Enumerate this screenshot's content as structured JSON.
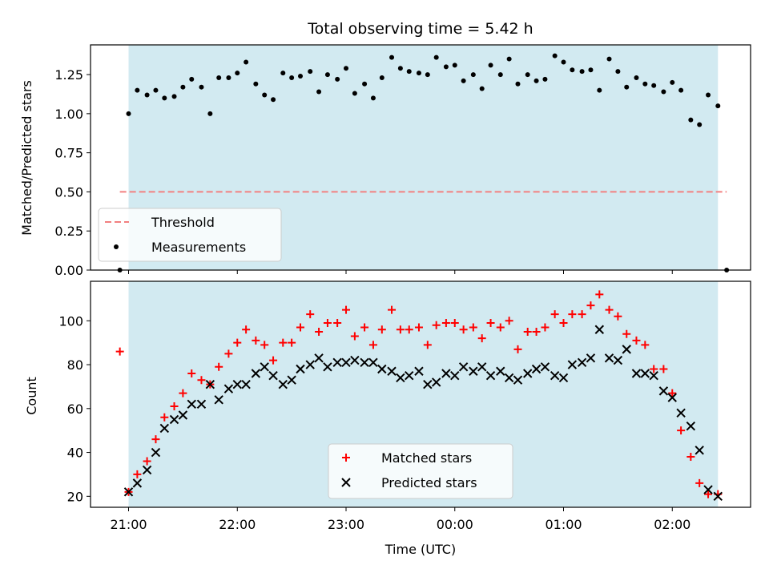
{
  "chart_data": [
    {
      "type": "scatter",
      "title": "Total observing time = 5.42 h",
      "ylabel": "Matched/Predicted stars",
      "xlabel": "",
      "ylim": [
        0,
        1.44
      ],
      "yticks": [
        0.0,
        0.25,
        0.5,
        0.75,
        1.0,
        1.25
      ],
      "ytick_labels": [
        "0.00",
        "0.25",
        "0.50",
        "0.75",
        "1.00",
        "1.25"
      ],
      "x_unit": "hours since 21:00 UTC",
      "xlim": [
        -0.35,
        5.72
      ],
      "shaded_span": [
        0.0,
        5.42
      ],
      "threshold": {
        "name": "Threshold",
        "value": 0.5,
        "x_range": [
          -0.08,
          5.5
        ]
      },
      "series": [
        {
          "name": "Measurements",
          "x": [
            -0.08,
            0.0,
            0.08,
            0.17,
            0.25,
            0.33,
            0.42,
            0.5,
            0.58,
            0.67,
            0.75,
            0.83,
            0.92,
            1.0,
            1.08,
            1.17,
            1.25,
            1.33,
            1.42,
            1.5,
            1.58,
            1.67,
            1.75,
            1.83,
            1.92,
            2.0,
            2.08,
            2.17,
            2.25,
            2.33,
            2.42,
            2.5,
            2.58,
            2.67,
            2.75,
            2.83,
            2.92,
            3.0,
            3.08,
            3.17,
            3.25,
            3.33,
            3.42,
            3.5,
            3.58,
            3.67,
            3.75,
            3.83,
            3.92,
            4.0,
            4.08,
            4.17,
            4.25,
            4.33,
            4.42,
            4.5,
            4.58,
            4.67,
            4.75,
            4.83,
            4.92,
            5.0,
            5.08,
            5.17,
            5.25,
            5.33,
            5.42,
            5.5
          ],
          "y": [
            0.0,
            1.0,
            1.15,
            1.12,
            1.15,
            1.1,
            1.11,
            1.17,
            1.22,
            1.17,
            1.0,
            1.23,
            1.23,
            1.26,
            1.33,
            1.19,
            1.12,
            1.09,
            1.26,
            1.23,
            1.24,
            1.27,
            1.14,
            1.25,
            1.22,
            1.29,
            1.13,
            1.19,
            1.1,
            1.23,
            1.36,
            1.29,
            1.27,
            1.26,
            1.25,
            1.36,
            1.3,
            1.31,
            1.21,
            1.25,
            1.16,
            1.31,
            1.25,
            1.35,
            1.19,
            1.25,
            1.21,
            1.22,
            1.37,
            1.33,
            1.28,
            1.27,
            1.28,
            1.15,
            1.35,
            1.27,
            1.17,
            1.23,
            1.19,
            1.18,
            1.14,
            1.2,
            1.15,
            0.96,
            0.93,
            1.12,
            1.05,
            0.0
          ]
        }
      ]
    },
    {
      "type": "scatter",
      "ylabel": "Count",
      "xlabel": "Time (UTC)",
      "ylim": [
        15,
        118
      ],
      "yticks": [
        20,
        40,
        60,
        80,
        100
      ],
      "ytick_labels": [
        "20",
        "40",
        "60",
        "80",
        "100"
      ],
      "x_unit": "hours since 21:00 UTC",
      "xlim": [
        -0.35,
        5.72
      ],
      "xticks": [
        0,
        1,
        2,
        3,
        4,
        5
      ],
      "xtick_labels": [
        "21:00",
        "22:00",
        "23:00",
        "00:00",
        "01:00",
        "02:00"
      ],
      "shaded_span": [
        0.0,
        5.42
      ],
      "series": [
        {
          "name": "Matched stars",
          "marker": "plus",
          "color": "#ff0000",
          "x": [
            -0.08,
            0.0,
            0.08,
            0.17,
            0.25,
            0.33,
            0.42,
            0.5,
            0.58,
            0.67,
            0.75,
            0.83,
            0.92,
            1.0,
            1.08,
            1.17,
            1.25,
            1.33,
            1.42,
            1.5,
            1.58,
            1.67,
            1.75,
            1.83,
            1.92,
            2.0,
            2.08,
            2.17,
            2.25,
            2.33,
            2.42,
            2.5,
            2.58,
            2.67,
            2.75,
            2.83,
            2.92,
            3.0,
            3.08,
            3.17,
            3.25,
            3.33,
            3.42,
            3.5,
            3.58,
            3.67,
            3.75,
            3.83,
            3.92,
            4.0,
            4.08,
            4.17,
            4.25,
            4.33,
            4.42,
            4.5,
            4.58,
            4.67,
            4.75,
            4.83,
            4.92,
            5.0,
            5.08,
            5.17,
            5.25,
            5.33,
            5.42
          ],
          "y": [
            86,
            22,
            30,
            36,
            46,
            56,
            61,
            67,
            76,
            73,
            71,
            79,
            85,
            90,
            96,
            91,
            89,
            82,
            90,
            90,
            97,
            103,
            95,
            99,
            99,
            105,
            93,
            97,
            89,
            96,
            105,
            96,
            96,
            97,
            89,
            98,
            99,
            99,
            96,
            97,
            92,
            99,
            97,
            100,
            87,
            95,
            95,
            97,
            103,
            99,
            103,
            103,
            107,
            112,
            105,
            102,
            94,
            91,
            89,
            78,
            78,
            67,
            50,
            38,
            26,
            21,
            21
          ]
        },
        {
          "name": "Predicted stars",
          "marker": "x",
          "color": "#000000",
          "x": [
            0.0,
            0.08,
            0.17,
            0.25,
            0.33,
            0.42,
            0.5,
            0.58,
            0.67,
            0.75,
            0.83,
            0.92,
            1.0,
            1.08,
            1.17,
            1.25,
            1.33,
            1.42,
            1.5,
            1.58,
            1.67,
            1.75,
            1.83,
            1.92,
            2.0,
            2.08,
            2.17,
            2.25,
            2.33,
            2.42,
            2.5,
            2.58,
            2.67,
            2.75,
            2.83,
            2.92,
            3.0,
            3.08,
            3.17,
            3.25,
            3.33,
            3.42,
            3.5,
            3.58,
            3.67,
            3.75,
            3.83,
            3.92,
            4.0,
            4.08,
            4.17,
            4.25,
            4.33,
            4.42,
            4.5,
            4.58,
            4.67,
            4.75,
            4.83,
            4.92,
            5.0,
            5.08,
            5.17,
            5.25,
            5.33,
            5.42
          ],
          "y": [
            22,
            26,
            32,
            40,
            51,
            55,
            57,
            62,
            62,
            71,
            64,
            69,
            71,
            71,
            76,
            79,
            75,
            71,
            73,
            78,
            80,
            83,
            79,
            81,
            81,
            82,
            81,
            81,
            78,
            77,
            74,
            75,
            77,
            71,
            72,
            76,
            75,
            79,
            77,
            79,
            75,
            77,
            74,
            73,
            76,
            78,
            79,
            75,
            74,
            80,
            81,
            83,
            96,
            83,
            82,
            87,
            76,
            76,
            75,
            68,
            65,
            58,
            52,
            41,
            23,
            20
          ]
        }
      ]
    }
  ],
  "legends": {
    "top": [
      {
        "label": "Threshold",
        "style": "dashed-line",
        "color": "#f28080"
      },
      {
        "label": "Measurements",
        "style": "dot",
        "color": "#000000"
      }
    ],
    "bottom": [
      {
        "label": "Matched stars",
        "style": "plus",
        "color": "#ff0000"
      },
      {
        "label": "Predicted stars",
        "style": "x",
        "color": "#000000"
      }
    ]
  },
  "colors": {
    "shade": "#add8e6",
    "threshold": "#f28080",
    "matched": "#ff0000",
    "predicted": "#000000",
    "measurement": "#000000"
  }
}
